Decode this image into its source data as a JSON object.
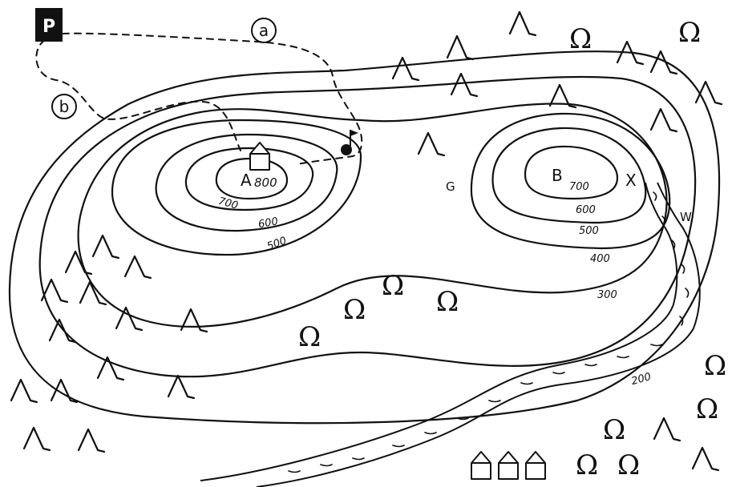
{
  "map": {
    "start_marker": "P",
    "route_labels": [
      "a",
      "b"
    ],
    "peaks": [
      {
        "name": "A",
        "height": "800"
      },
      {
        "name": "B",
        "height": "700"
      }
    ],
    "point_labels": {
      "saddle": "G",
      "spring": "X",
      "river": "W"
    },
    "contour_labels": {
      "west": [
        "700",
        "600",
        "500"
      ],
      "east": [
        "600",
        "500",
        "400",
        "300",
        "200"
      ]
    },
    "symbols": {
      "conifer_tree": "Λ",
      "deciduous_tree": "Ω",
      "church_icon": "church-icon",
      "flag_icon": "flag-icon",
      "house_icon": "house-icon"
    }
  }
}
